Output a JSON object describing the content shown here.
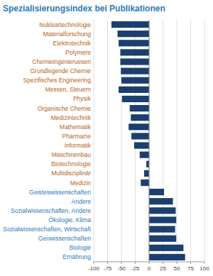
{
  "chart_data": {
    "type": "bar",
    "orientation": "horizontal",
    "title": "Spezialisierungsindex bei Publikationen",
    "categories": [
      "Nukleartechnologie",
      "Materialforschung",
      "Elektrotechnik",
      "Polymere",
      "Chemieingenieruesen",
      "Grundlegende Chemie",
      "Spezifisches Engineering",
      "Messen, Steuern",
      "Physik",
      "Organische Chemie",
      "Medizintechnik",
      "Mathematik",
      "Pharmazie",
      "Informatik",
      "Maschinenbau",
      "Biotechnologie",
      "Multidisziplinär",
      "Medizin",
      "Geisteswissenschaften",
      "Andere",
      "Sozialwissenschaften, Andere",
      "Ökologie, Klima",
      "Sozialwissenschaften, Wirtschaft",
      "Geowissenschaften",
      "Biologie",
      "Ernährung"
    ],
    "values": [
      -68,
      -57,
      -55,
      -52,
      -52,
      -51,
      -50,
      -55,
      -49,
      -35,
      -33,
      -37,
      -32,
      -27,
      -17,
      -5,
      -9,
      -15,
      27,
      43,
      48,
      49,
      47,
      49,
      62,
      65
    ],
    "color": "#1b3f6e",
    "xlim": [
      -100,
      100
    ],
    "xticks": [
      -100,
      -75,
      -50,
      -25,
      0,
      25,
      50,
      75,
      100
    ],
    "grid": true
  }
}
